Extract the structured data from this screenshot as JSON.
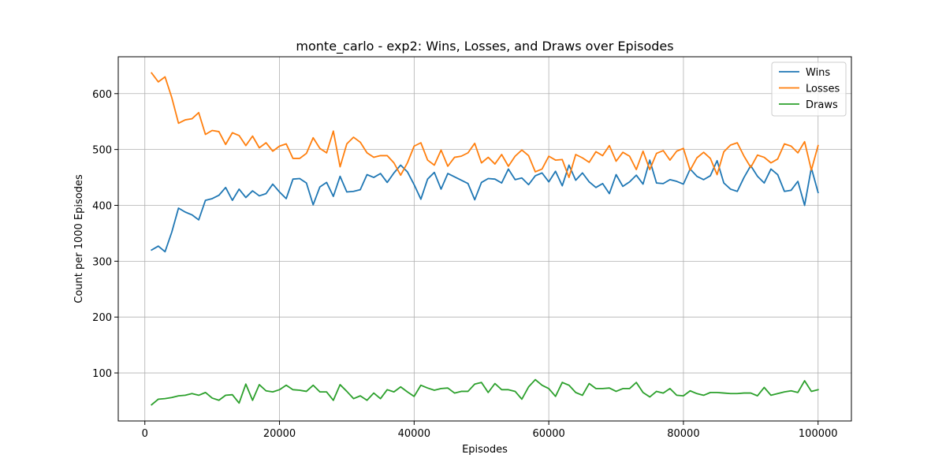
{
  "chart_data": {
    "type": "line",
    "title": "monte_carlo - exp2: Wins, Losses, and Draws over Episodes",
    "xlabel": "Episodes",
    "ylabel": "Count per 1000 Episodes",
    "xlim": [
      -3950,
      104950
    ],
    "ylim": [
      14,
      666
    ],
    "xticks": [
      0,
      20000,
      40000,
      60000,
      80000,
      100000
    ],
    "yticks": [
      100,
      200,
      300,
      400,
      500,
      600
    ],
    "grid": true,
    "legend_position": "upper-right",
    "x": [
      1000,
      2000,
      3000,
      4000,
      5000,
      6000,
      7000,
      8000,
      9000,
      10000,
      11000,
      12000,
      13000,
      14000,
      15000,
      16000,
      17000,
      18000,
      19000,
      20000,
      21000,
      22000,
      23000,
      24000,
      25000,
      26000,
      27000,
      28000,
      29000,
      30000,
      31000,
      32000,
      33000,
      34000,
      35000,
      36000,
      37000,
      38000,
      39000,
      40000,
      41000,
      42000,
      43000,
      44000,
      45000,
      46000,
      47000,
      48000,
      49000,
      50000,
      51000,
      52000,
      53000,
      54000,
      55000,
      56000,
      57000,
      58000,
      59000,
      60000,
      61000,
      62000,
      63000,
      64000,
      65000,
      66000,
      67000,
      68000,
      69000,
      70000,
      71000,
      72000,
      73000,
      74000,
      75000,
      76000,
      77000,
      78000,
      79000,
      80000,
      81000,
      82000,
      83000,
      84000,
      85000,
      86000,
      87000,
      88000,
      89000,
      90000,
      91000,
      92000,
      93000,
      94000,
      95000,
      96000,
      97000,
      98000,
      99000,
      100000
    ],
    "series": [
      {
        "name": "Wins",
        "color": "#1f77b4",
        "values": [
          320,
          327,
          317,
          352,
          395,
          388,
          383,
          374,
          409,
          412,
          418,
          432,
          409,
          429,
          414,
          426,
          417,
          421,
          438,
          424,
          412,
          447,
          448,
          440,
          401,
          433,
          441,
          416,
          452,
          424,
          425,
          428,
          455,
          450,
          457,
          441,
          458,
          472,
          460,
          437,
          411,
          447,
          459,
          429,
          457,
          451,
          445,
          439,
          410,
          441,
          448,
          447,
          440,
          465,
          446,
          449,
          437,
          453,
          458,
          442,
          461,
          435,
          472,
          445,
          458,
          442,
          432,
          439,
          421,
          455,
          434,
          442,
          454,
          438,
          481,
          440,
          439,
          446,
          443,
          438,
          465,
          452,
          446,
          453,
          480,
          440,
          429,
          425,
          450,
          471,
          452,
          440,
          465,
          455,
          425,
          427,
          443,
          400,
          467,
          423
        ]
      },
      {
        "name": "Losses",
        "color": "#ff7f0e",
        "values": [
          637,
          621,
          630,
          593,
          547,
          553,
          555,
          566,
          527,
          534,
          532,
          509,
          530,
          525,
          507,
          524,
          503,
          512,
          497,
          506,
          510,
          484,
          484,
          493,
          521,
          502,
          494,
          533,
          469,
          510,
          522,
          513,
          494,
          486,
          489,
          489,
          476,
          454,
          476,
          506,
          512,
          481,
          472,
          499,
          470,
          486,
          488,
          494,
          511,
          476,
          486,
          474,
          491,
          470,
          488,
          499,
          489,
          460,
          465,
          488,
          481,
          482,
          450,
          491,
          485,
          477,
          496,
          489,
          507,
          479,
          495,
          488,
          464,
          497,
          464,
          493,
          498,
          481,
          497,
          502,
          463,
          485,
          495,
          484,
          455,
          496,
          508,
          512,
          488,
          468,
          490,
          486,
          476,
          483,
          510,
          506,
          494,
          514,
          463,
          507
        ]
      },
      {
        "name": "Draws",
        "color": "#2ca02c",
        "values": [
          43,
          53,
          54,
          56,
          59,
          60,
          63,
          60,
          65,
          55,
          51,
          60,
          61,
          46,
          80,
          51,
          79,
          68,
          66,
          70,
          78,
          70,
          69,
          67,
          78,
          66,
          66,
          51,
          79,
          67,
          54,
          59,
          51,
          64,
          54,
          70,
          66,
          75,
          66,
          58,
          78,
          73,
          69,
          72,
          73,
          64,
          67,
          67,
          80,
          83,
          65,
          81,
          70,
          70,
          67,
          53,
          75,
          88,
          78,
          72,
          58,
          83,
          78,
          65,
          60,
          81,
          72,
          72,
          73,
          67,
          72,
          72,
          83,
          65,
          57,
          67,
          64,
          72,
          60,
          59,
          68,
          63,
          60,
          65,
          65,
          64,
          63,
          63,
          64,
          64,
          59,
          74,
          60,
          63,
          66,
          68,
          65,
          86,
          67,
          70
        ]
      }
    ]
  }
}
